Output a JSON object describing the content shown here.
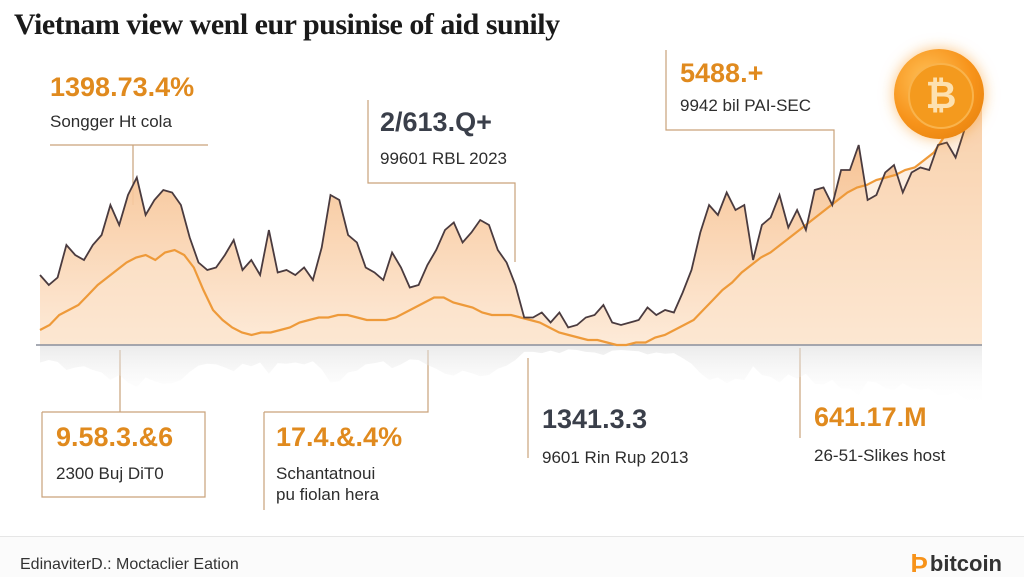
{
  "title": "Vietnam view wenl eur pusinise of aid sunily",
  "callouts": [
    {
      "value": "1398.73.4%",
      "label": "Songger Ht cola",
      "style": "orange"
    },
    {
      "value": "2/613.Q+",
      "label": "99601 RBL 2023",
      "style": "dark"
    },
    {
      "value": "5488.+",
      "label": "9942 bil PAI-SEC",
      "style": "orange"
    },
    {
      "value": "9.58.3.&6",
      "label": "2300 Buj DiT0",
      "style": "orange"
    },
    {
      "value": "17.4.&.4%",
      "label": "Schantatnoui\npu fiolan hera",
      "style": "orange"
    },
    {
      "value": "1341.3.3",
      "label": "9601 Rin Rup 2013",
      "style": "dark"
    },
    {
      "value": "641.17.M",
      "label": "26-51-Slikes host",
      "style": "orange"
    }
  ],
  "footer": {
    "source": "EdinaviterD.: Moctaclier Eation",
    "brand_mark": "Þ",
    "brand_text": "bitcoin"
  },
  "coin_icon": "bitcoin-coin-icon",
  "colors": {
    "accent": "#f7931a",
    "upper_line": "#4a3b3f",
    "area_fill": "#f6c9a0",
    "lower_line": "#ee9a3a"
  },
  "chart_data": {
    "type": "area",
    "title": "Vietnam view wenl eur pusinise of aid sunily",
    "xlabel": "",
    "ylabel": "",
    "ylim": [
      0,
      100
    ],
    "grid": false,
    "legend": "none",
    "series": [
      {
        "values": [
          28,
          24,
          27,
          40,
          36,
          34,
          40,
          44,
          56,
          48,
          60,
          67,
          52,
          58,
          62,
          61,
          56,
          43,
          33,
          30,
          31,
          36,
          42,
          30,
          34,
          28,
          46,
          29,
          30,
          28,
          31,
          26,
          39,
          60,
          58,
          44,
          41,
          31,
          29,
          26,
          37,
          31,
          23,
          24,
          32,
          38,
          46,
          49,
          41,
          45,
          50,
          48,
          38,
          33,
          24,
          11,
          11,
          13,
          9,
          13,
          7,
          8,
          11,
          12,
          16,
          9,
          8,
          9,
          10,
          15,
          12,
          14,
          13,
          21,
          30,
          45,
          56,
          52,
          61,
          54,
          56,
          34,
          48,
          51,
          60,
          47,
          54,
          46,
          62,
          63,
          56,
          70,
          70,
          80,
          58,
          60,
          69,
          72,
          61,
          69,
          71,
          70,
          80,
          81,
          75,
          86,
          94,
          100
        ]
      },
      {
        "values": [
          6,
          8,
          12,
          14,
          16,
          20,
          24,
          27,
          30,
          33,
          35,
          36,
          34,
          37,
          38,
          36,
          31,
          22,
          14,
          10,
          7,
          5,
          4,
          5,
          5,
          6,
          7,
          9,
          10,
          11,
          11,
          12,
          12,
          11,
          10,
          10,
          10,
          11,
          13,
          15,
          17,
          19,
          19,
          17,
          16,
          15,
          13,
          12,
          12,
          12,
          11,
          10,
          9,
          7,
          5,
          4,
          3,
          2,
          2,
          1,
          0,
          0,
          1,
          1,
          3,
          4,
          6,
          8,
          10,
          14,
          18,
          22,
          25,
          29,
          32,
          35,
          37,
          40,
          43,
          46,
          49,
          52,
          55,
          58,
          61,
          63,
          64,
          66,
          67,
          68,
          70,
          71,
          74,
          77,
          83,
          90,
          95,
          97,
          99
        ]
      }
    ]
  }
}
